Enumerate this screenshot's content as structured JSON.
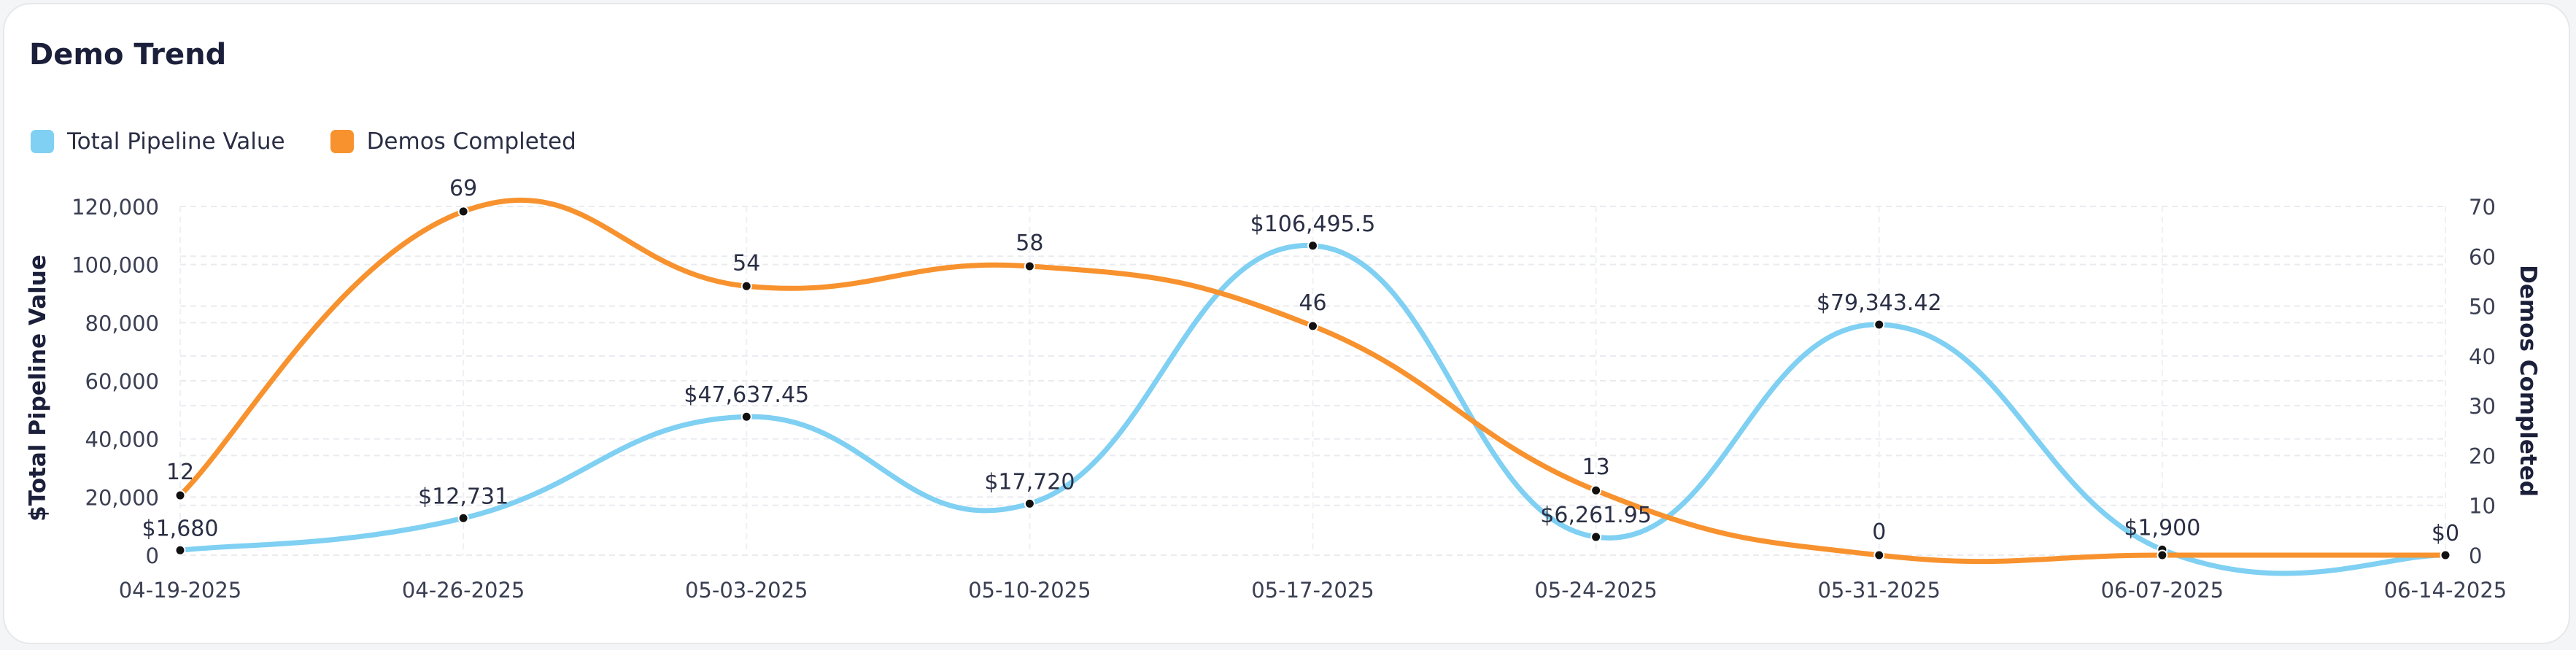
{
  "card": {
    "title": "Demo Trend"
  },
  "legend": [
    {
      "label": "Total Pipeline Value",
      "color": "#7fd0f2"
    },
    {
      "label": "Demos Completed",
      "color": "#f7922e"
    }
  ],
  "chart_data": {
    "type": "line",
    "title": "Demo Trend",
    "categories": [
      "04-19-2025",
      "04-26-2025",
      "05-03-2025",
      "05-10-2025",
      "05-17-2025",
      "05-24-2025",
      "05-31-2025",
      "06-07-2025",
      "06-14-2025"
    ],
    "series": [
      {
        "name": "Total Pipeline Value",
        "axis": "left",
        "color": "#7fd0f2",
        "values": [
          1680,
          12731,
          47637.45,
          17720,
          106495.5,
          6261.95,
          79343.42,
          1900,
          0
        ],
        "labels": [
          "$1,680",
          "$12,731",
          "$47,637.45",
          "$17,720",
          "$106,495.5",
          "$6,261.95",
          "$79,343.42",
          "$1,900",
          "$0"
        ]
      },
      {
        "name": "Demos Completed",
        "axis": "right",
        "color": "#f7922e",
        "values": [
          12,
          69,
          54,
          58,
          46,
          13,
          0,
          0,
          0
        ],
        "labels": [
          "12",
          "69",
          "54",
          "58",
          "46",
          "13",
          "0",
          "",
          ""
        ]
      }
    ],
    "ylabel_left": "$Total Pipeline Value",
    "ylabel_right": "Demos Completed",
    "ylim_left": [
      0,
      120000
    ],
    "yticks_left": [
      "0",
      "20,000",
      "40,000",
      "60,000",
      "80,000",
      "100,000",
      "120,000"
    ],
    "ylim_right": [
      0,
      70
    ],
    "yticks_right": [
      "0",
      "10",
      "20",
      "30",
      "40",
      "50",
      "60",
      "70"
    ],
    "grid": true,
    "legend_position": "top-left"
  }
}
